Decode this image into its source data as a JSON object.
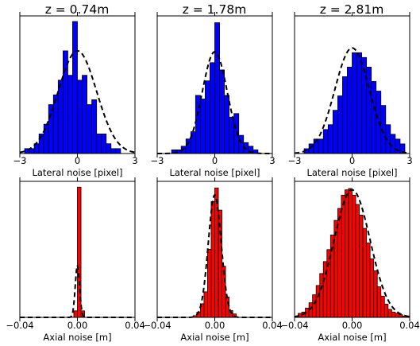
{
  "chart_data": [
    {
      "type": "histogram",
      "title": "z = 0.74m",
      "xlabel": "Lateral noise [pixel]",
      "xlim": [
        -3,
        3
      ],
      "xticks": [
        -3,
        0,
        3
      ],
      "xticklabels": [
        "−3",
        "0",
        "3"
      ],
      "bar_color": "#0000ff",
      "bins": {
        "start": -2.75,
        "width": 0.25
      },
      "values": [
        1,
        1,
        2,
        4,
        6,
        10,
        12,
        15,
        21,
        16,
        27,
        15,
        16,
        10,
        11,
        4,
        4,
        2,
        1,
        1
      ],
      "ymax": 27.5,
      "fit": {
        "mean": 0.0,
        "std": 1.0,
        "peak": 21
      }
    },
    {
      "type": "histogram",
      "title": "z = 1.78m",
      "xlabel": "Lateral noise [pixel]",
      "xlim": [
        -3,
        3
      ],
      "xticks": [
        -3,
        0,
        3
      ],
      "xticklabels": [
        "−3",
        "0",
        "3"
      ],
      "bar_color": "#0000ff",
      "bins": {
        "start": -2.25,
        "width": 0.25
      },
      "values": [
        1,
        1,
        2,
        4,
        6,
        16,
        15,
        20,
        25,
        36,
        23,
        16,
        10,
        11,
        5,
        3,
        2,
        1
      ],
      "ymax": 37,
      "fit": {
        "mean": 0.0,
        "std": 0.65,
        "peak": 28
      }
    },
    {
      "type": "histogram",
      "title": "z = 2.81m",
      "xlabel": "Lateral noise [pixel]",
      "xlim": [
        -3,
        3
      ],
      "xticks": [
        -3,
        0,
        3
      ],
      "xticklabels": [
        "−3",
        "0",
        "3"
      ],
      "bar_color": "#0000ff",
      "bins": {
        "start": -2.5,
        "width": 0.25
      },
      "values": [
        1,
        2,
        3,
        3,
        5,
        6,
        9,
        12,
        16,
        18,
        21,
        21,
        20,
        18,
        15,
        13,
        10,
        6,
        4,
        3,
        2
      ],
      "ymax": 28,
      "fit": {
        "mean": 0.0,
        "std": 0.9,
        "peak": 22
      }
    },
    {
      "type": "histogram",
      "title": "",
      "xlabel": "Axial noise [m]",
      "xlim": [
        -0.04,
        0.04
      ],
      "xticks": [
        -0.04,
        0.0,
        0.04
      ],
      "xticklabels": [
        "−0.04",
        "0.00",
        "0.04"
      ],
      "bar_color": "#ff0000",
      "bins": {
        "start": -0.0025,
        "width": 0.0025
      },
      "values": [
        5,
        100,
        5
      ],
      "ymax": 102,
      "fit": {
        "mean": 0.0,
        "std": 0.0015,
        "peak": 40
      }
    },
    {
      "type": "histogram",
      "title": "",
      "xlabel": "Axial noise [m]",
      "xlim": [
        -0.04,
        0.04
      ],
      "xticks": [
        -0.04,
        0.0,
        0.04
      ],
      "xticklabels": [
        "−0.04",
        "0.00",
        "0.04"
      ],
      "bar_color": "#ff0000",
      "bins": {
        "start": -0.015,
        "width": 0.0025
      },
      "values": [
        1,
        3,
        8,
        15,
        40,
        68,
        76,
        63,
        30,
        12,
        4,
        2
      ],
      "ymax": 78,
      "fit": {
        "mean": 0.0,
        "std": 0.0045,
        "peak": 72
      }
    },
    {
      "type": "histogram",
      "title": "",
      "xlabel": "Axial noise [m]",
      "xlim": [
        -0.04,
        0.04
      ],
      "xticks": [
        -0.04,
        0.0,
        0.04
      ],
      "xticklabels": [
        "−0.04",
        "0.00",
        "0.04"
      ],
      "bar_color": "#ff0000",
      "bins": {
        "start": -0.04,
        "width": 0.0025
      },
      "values": [
        1,
        3,
        4,
        7,
        11,
        17,
        24,
        33,
        42,
        51,
        62,
        73,
        82,
        92,
        96,
        97,
        92,
        85,
        77,
        67,
        56,
        44,
        35,
        23,
        16,
        10,
        6,
        4,
        3,
        2,
        1,
        1
      ],
      "ymax": 100,
      "fit": {
        "mean": 0.0,
        "std": 0.0125,
        "peak": 96
      }
    }
  ]
}
